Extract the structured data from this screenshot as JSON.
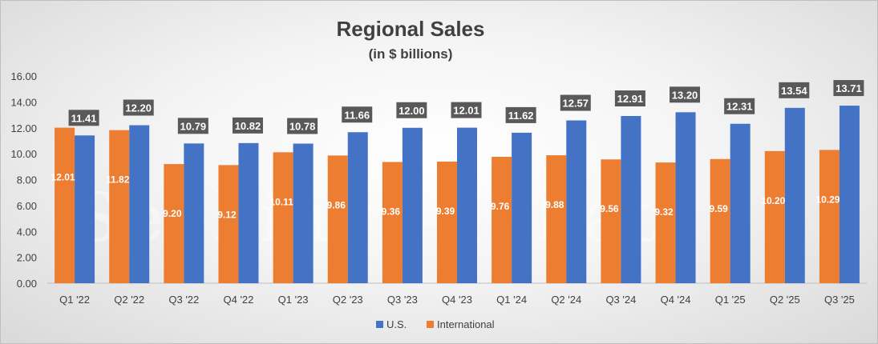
{
  "chart_data": {
    "type": "bar",
    "title": "Regional Sales",
    "subtitle": "(in $ billions)",
    "xlabel": "",
    "ylabel": "",
    "ylim": [
      0,
      16
    ],
    "yticks": [
      "0.00",
      "2.00",
      "4.00",
      "6.00",
      "8.00",
      "10.00",
      "12.00",
      "14.00",
      "16.00"
    ],
    "categories": [
      "Q1 '22",
      "Q2 '22",
      "Q3 '22",
      "Q4 '22",
      "Q1 '23",
      "Q2 '23",
      "Q3 '23",
      "Q4 '23",
      "Q1 '24",
      "Q2 '24",
      "Q3 '24",
      "Q4 '24",
      "Q1 '25",
      "Q2 '25",
      "Q3 '25"
    ],
    "series": [
      {
        "name": "International",
        "color": "#ED7D31",
        "values": [
          12.01,
          11.82,
          9.2,
          9.12,
          10.11,
          9.86,
          9.36,
          9.39,
          9.76,
          9.88,
          9.56,
          9.32,
          9.59,
          10.2,
          10.29
        ]
      },
      {
        "name": "U.S.",
        "color": "#4472C4",
        "values": [
          11.41,
          12.2,
          10.79,
          10.82,
          10.78,
          11.66,
          12.0,
          12.01,
          11.62,
          12.57,
          12.91,
          13.2,
          12.31,
          13.54,
          13.71
        ]
      }
    ],
    "legend": [
      "U.S.",
      "International"
    ],
    "legend_position": "bottom",
    "grid": false
  },
  "watermark": "Seeking Alphaα"
}
